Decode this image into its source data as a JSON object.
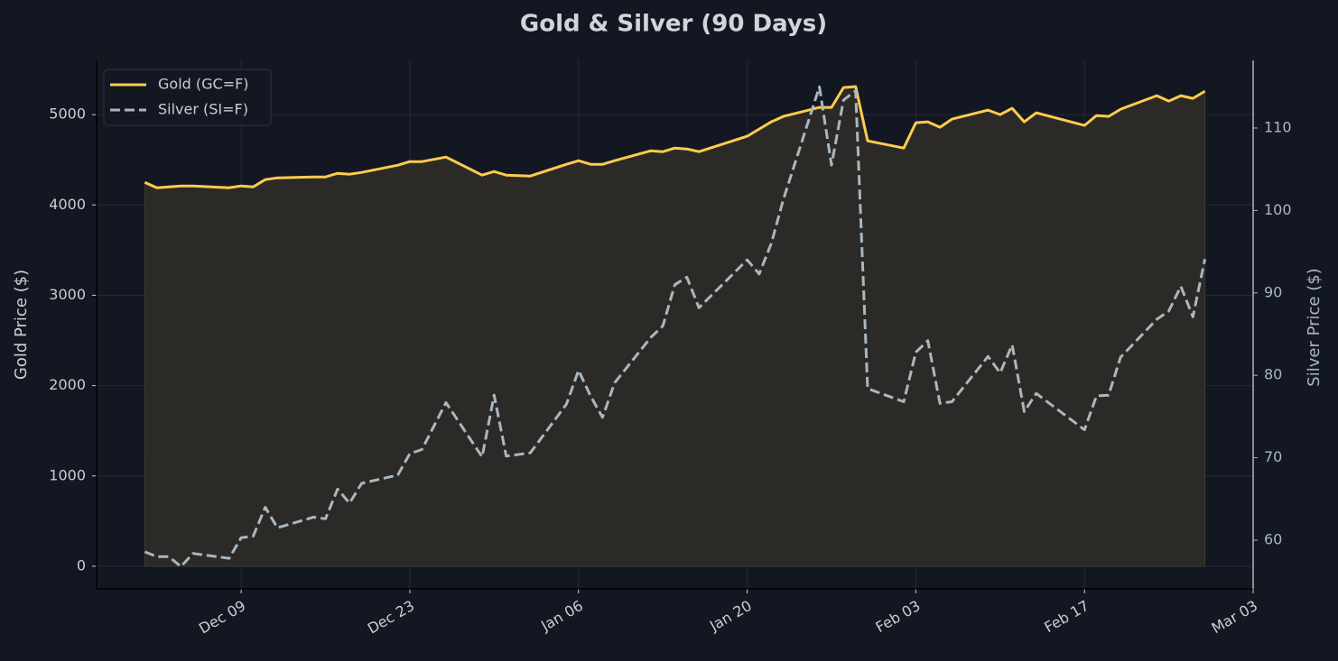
{
  "chart_data": {
    "type": "line",
    "title": "Gold & Silver (90 Days)",
    "y_label": "Gold Price ($)",
    "y2_label": "Silver Price ($)",
    "x": [
      "Dec 01",
      "Dec 02",
      "Dec 03",
      "Dec 04",
      "Dec 05",
      "Dec 08",
      "Dec 09",
      "Dec 10",
      "Dec 11",
      "Dec 12",
      "Dec 15",
      "Dec 16",
      "Dec 17",
      "Dec 18",
      "Dec 19",
      "Dec 22",
      "Dec 23",
      "Dec 24",
      "Dec 26",
      "Dec 29",
      "Dec 30",
      "Dec 31",
      "Jan 02",
      "Jan 05",
      "Jan 06",
      "Jan 07",
      "Jan 08",
      "Jan 09",
      "Jan 12",
      "Jan 13",
      "Jan 14",
      "Jan 15",
      "Jan 16",
      "Jan 20",
      "Jan 21",
      "Jan 22",
      "Jan 23",
      "Jan 26",
      "Jan 27",
      "Jan 28",
      "Jan 29",
      "Jan 30",
      "Feb 02",
      "Feb 03",
      "Feb 04",
      "Feb 05",
      "Feb 06",
      "Feb 09",
      "Feb 10",
      "Feb 11",
      "Feb 12",
      "Feb 13",
      "Feb 17",
      "Feb 18",
      "Feb 19",
      "Feb 20",
      "Feb 23",
      "Feb 24",
      "Feb 25",
      "Feb 26",
      "Feb 27"
    ],
    "series": [
      {
        "name": "Gold (GC=F)",
        "color": "#ffcc4d",
        "linestyle": "solid",
        "fill": true,
        "fill_color": "#2b2a27",
        "values": [
          4250,
          4190,
          4200,
          4210,
          4210,
          4190,
          4210,
          4200,
          4280,
          4300,
          4310,
          4310,
          4350,
          4340,
          4360,
          4440,
          4480,
          4480,
          4530,
          4330,
          4370,
          4330,
          4320,
          4450,
          4490,
          4450,
          4450,
          4490,
          4600,
          4590,
          4630,
          4620,
          4590,
          4760,
          4840,
          4920,
          4980,
          5080,
          5080,
          5300,
          5310,
          4710,
          4630,
          4910,
          4920,
          4860,
          4950,
          5050,
          5000,
          5070,
          4920,
          5020,
          4880,
          4990,
          4980,
          5060,
          5210,
          5150,
          5210,
          5180,
          5260
        ]
      },
      {
        "name": "Silver (SI=F)",
        "color": "#aab7bf",
        "linestyle": "dashed",
        "axis": "y2",
        "values": [
          58.6,
          58.0,
          58.0,
          56.8,
          58.4,
          57.8,
          60.3,
          60.5,
          64.0,
          61.5,
          62.8,
          62.6,
          66.2,
          64.5,
          66.9,
          67.9,
          70.5,
          71.0,
          76.7,
          70.1,
          77.6,
          70.2,
          70.6,
          76.5,
          80.6,
          77.5,
          74.9,
          79.1,
          84.6,
          86.0,
          91.0,
          91.9,
          88.2,
          94.0,
          92.3,
          96.0,
          101.3,
          115.0,
          105.5,
          113.4,
          114.5,
          78.4,
          76.8,
          82.8,
          84.2,
          76.6,
          76.8,
          82.3,
          80.3,
          83.7,
          75.6,
          77.8,
          73.4,
          77.5,
          77.6,
          82.2,
          86.8,
          87.8,
          90.8,
          87.1,
          94.1
        ]
      }
    ],
    "xlim": [
      "Nov 27",
      "Mar 03"
    ],
    "xticks": [
      "Dec 09",
      "Dec 23",
      "Jan 06",
      "Jan 20",
      "Feb 03",
      "Feb 17",
      "Mar 03"
    ],
    "ylim": [
      -250,
      5600
    ],
    "yticks": [
      0,
      1000,
      2000,
      3000,
      4000,
      5000
    ],
    "y2lim": [
      54.1,
      118.2
    ],
    "y2ticks": [
      60,
      70,
      80,
      90,
      100,
      110
    ],
    "grid": true,
    "legend": "upper-left"
  }
}
